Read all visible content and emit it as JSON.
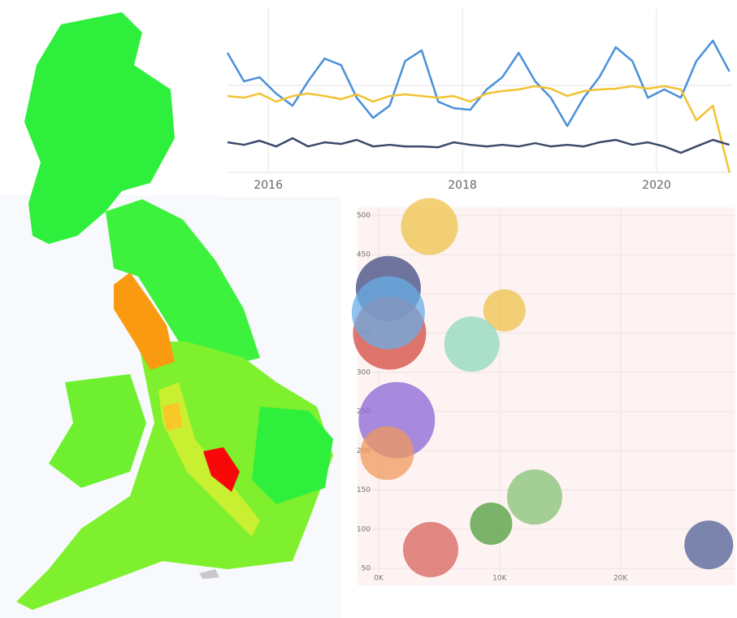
{
  "chart_data": [
    {
      "type": "line",
      "x": [
        2015.58,
        2015.75,
        2015.91,
        2016.08,
        2016.25,
        2016.41,
        2016.58,
        2016.75,
        2016.91,
        2017.08,
        2017.25,
        2017.41,
        2017.58,
        2017.75,
        2017.91,
        2018.08,
        2018.25,
        2018.41,
        2018.58,
        2018.75,
        2018.91,
        2019.08,
        2019.25,
        2019.41,
        2019.58,
        2019.75,
        2019.91,
        2020.08,
        2020.25,
        2020.41,
        2020.58,
        2020.75
      ],
      "series": [
        {
          "color": "#4a90d9",
          "values": [
            72.8,
            55.4,
            57.9,
            48,
            40.6,
            55.4,
            69.3,
            65.3,
            45.5,
            33.2,
            40.6,
            67.8,
            74.3,
            43.1,
            39.1,
            38.1,
            50.5,
            57.9,
            72.8,
            55.4,
            45.5,
            28.2,
            45.5,
            57.9,
            76.2,
            67.8,
            45.5,
            50.5,
            45.5,
            67.8,
            80.2,
            61.4
          ]
        },
        {
          "color": "#f2c230",
          "values": [
            46.5,
            45.5,
            48,
            43.1,
            46.5,
            48,
            46.5,
            44.6,
            47.5,
            43.1,
            46.5,
            47.5,
            46.5,
            45.5,
            46.5,
            43.1,
            48,
            49.5,
            50.5,
            52.5,
            51,
            46.5,
            49.5,
            50.5,
            51,
            52.5,
            51,
            52.5,
            50.5,
            31.7,
            40.6,
            0
          ]
        },
        {
          "color": "#3b4a6b",
          "values": [
            18.3,
            16.8,
            19.3,
            15.8,
            20.8,
            15.8,
            18.3,
            17.3,
            19.8,
            15.8,
            16.8,
            15.8,
            15.8,
            15.3,
            18.3,
            16.8,
            15.8,
            16.8,
            15.8,
            17.8,
            15.8,
            16.8,
            15.8,
            18.3,
            19.8,
            16.8,
            18.3,
            15.8,
            11.9,
            15.8,
            19.8,
            16.8
          ]
        }
      ],
      "xlim": [
        2015.58,
        2020.77
      ],
      "xticks": [
        2016,
        2018,
        2020
      ],
      "ylim": [
        0,
        100
      ],
      "grid": true
    },
    {
      "type": "scatter",
      "x": [
        4200,
        800,
        10400,
        900,
        800,
        7700,
        1500,
        700,
        12900,
        9300,
        4300,
        27300
      ],
      "values": [
        486,
        407,
        379,
        350,
        376,
        336,
        239,
        197,
        141,
        107,
        74,
        80
      ],
      "sizes": [
        35,
        40,
        26,
        45,
        45,
        34,
        47,
        33,
        34,
        26,
        34,
        30
      ],
      "colors": [
        "#eec24a",
        "#3e4a80",
        "#eec24a",
        "#d44a40",
        "#6aaee6",
        "#8ed9bd",
        "#8a66d6",
        "#f09a5c",
        "#84c274",
        "#4f9e3c",
        "#d8645c",
        "#4f5f94"
      ],
      "xlim": [
        0,
        29500
      ],
      "xticks": [
        {
          "value": 0,
          "label": "0K"
        },
        {
          "value": 10000,
          "label": "10K"
        },
        {
          "value": 20000,
          "label": "20K"
        }
      ],
      "ylim": [
        50,
        500
      ],
      "yticks": [
        50,
        100,
        150,
        200,
        250,
        300,
        350,
        400,
        450,
        500
      ],
      "grid": true
    }
  ]
}
